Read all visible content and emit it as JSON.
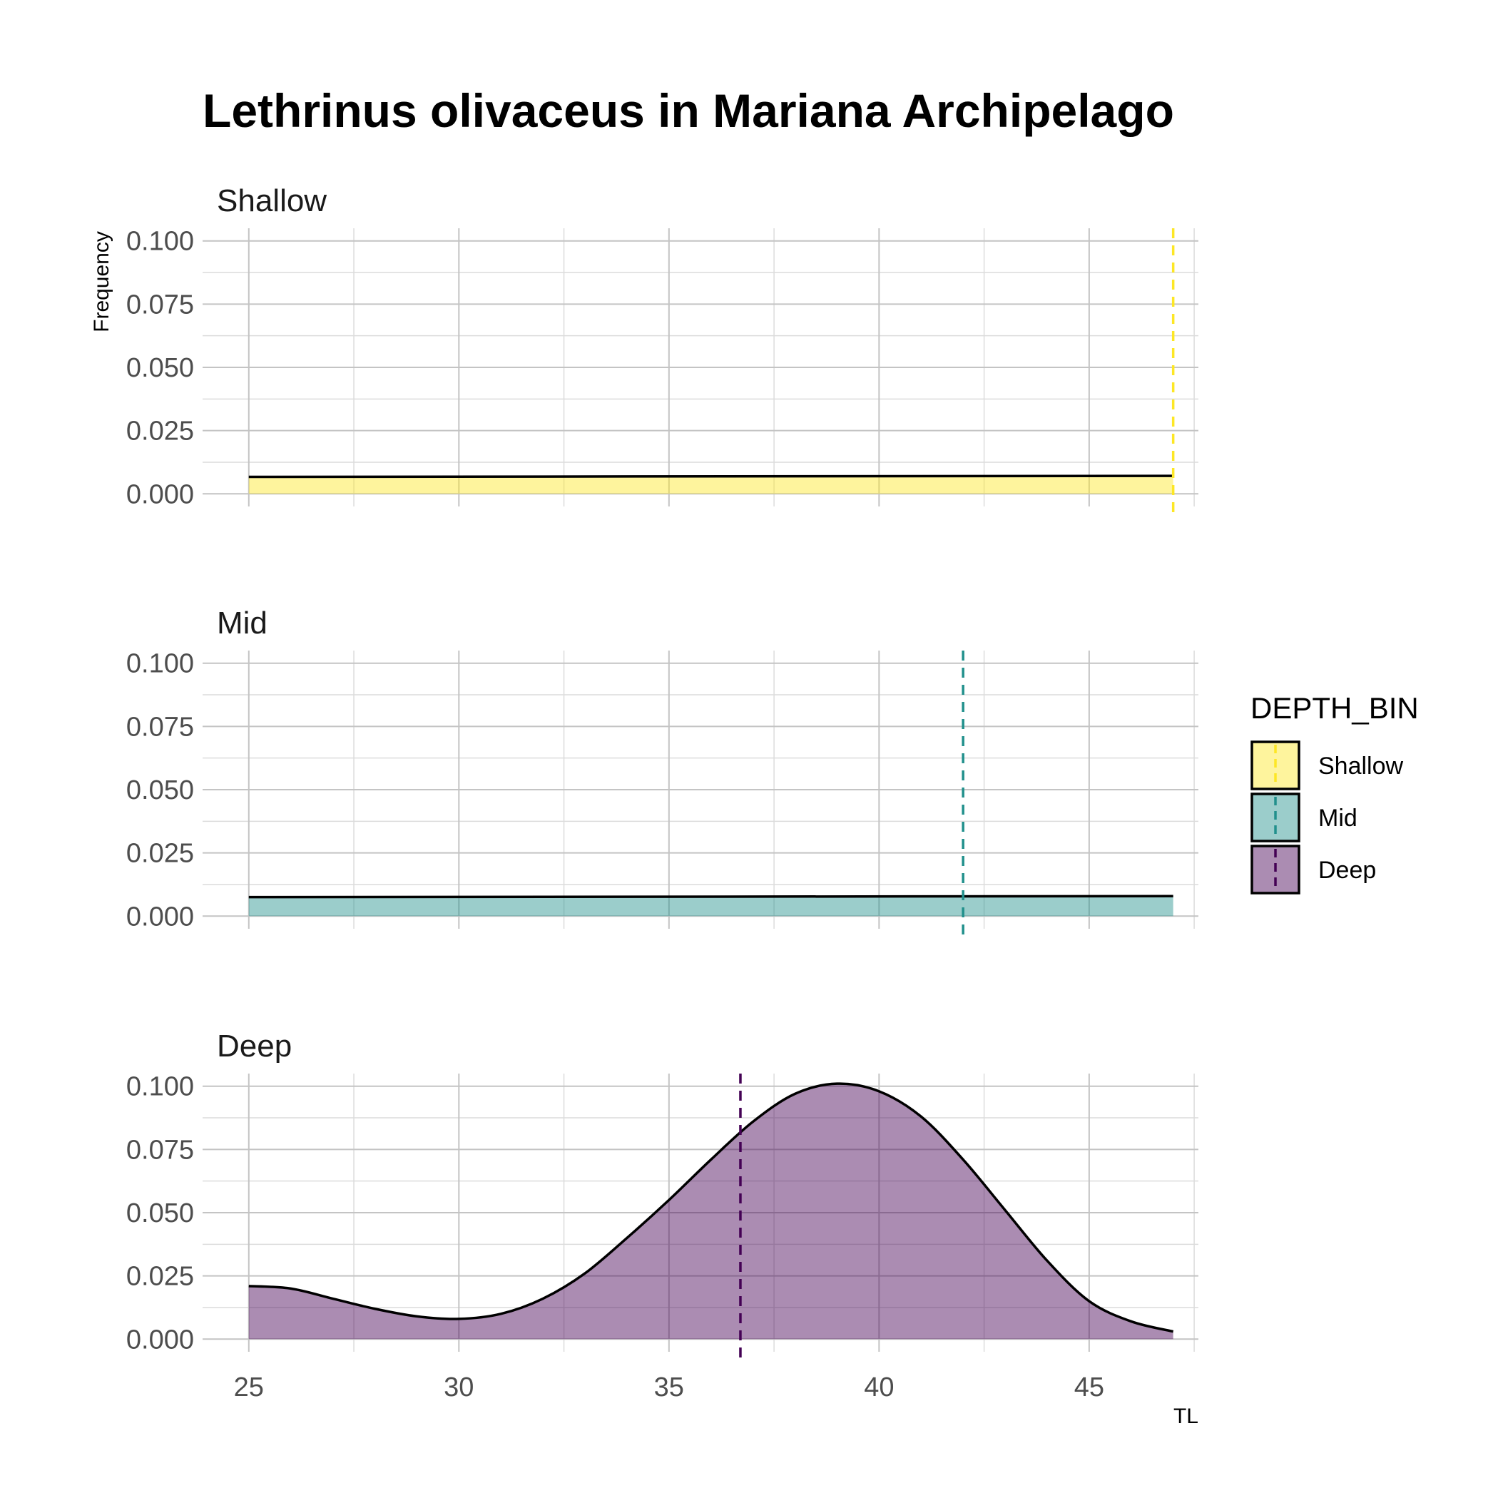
{
  "chart_data": {
    "type": "area",
    "title": "Lethrinus olivaceus in Mariana Archipelago",
    "xlabel": "TL",
    "ylabel": "Frequency",
    "xlim": [
      23.9,
      47.6
    ],
    "ylim": [
      -0.005,
      0.105
    ],
    "x_ticks": [
      25,
      30,
      35,
      40,
      45
    ],
    "x_tick_labels": [
      "25",
      "30",
      "35",
      "40",
      "45"
    ],
    "y_ticks": [
      0,
      0.025,
      0.05,
      0.075,
      0.1
    ],
    "y_tick_labels": [
      "0.000",
      "0.025",
      "0.050",
      "0.075",
      "0.100"
    ],
    "grid": true,
    "legend": {
      "title": "DEPTH_BIN",
      "placement": "right",
      "entries": [
        "Shallow",
        "Mid",
        "Deep"
      ]
    },
    "panels": [
      {
        "name": "Shallow",
        "fill": "#fde725",
        "line_color": "#fde725",
        "mean_line_x": 47.0,
        "x": [
          25,
          47
        ],
        "y": [
          0.0067,
          0.0071
        ]
      },
      {
        "name": "Mid",
        "fill": "#21908c",
        "line_color": "#21908c",
        "mean_line_x": 42.0,
        "x": [
          25,
          47
        ],
        "y": [
          0.0075,
          0.0079
        ]
      },
      {
        "name": "Deep",
        "fill": "#440154",
        "line_color": "#440154",
        "mean_line_x": 36.7,
        "x": [
          25,
          26,
          27,
          28,
          29,
          30,
          31,
          32,
          33,
          34,
          35,
          36,
          37,
          38,
          39,
          40,
          41,
          42,
          43,
          44,
          45,
          46,
          47
        ],
        "y": [
          0.021,
          0.02,
          0.016,
          0.012,
          0.009,
          0.008,
          0.01,
          0.016,
          0.026,
          0.04,
          0.055,
          0.071,
          0.086,
          0.097,
          0.101,
          0.098,
          0.088,
          0.071,
          0.051,
          0.031,
          0.015,
          0.007,
          0.003
        ]
      }
    ]
  }
}
